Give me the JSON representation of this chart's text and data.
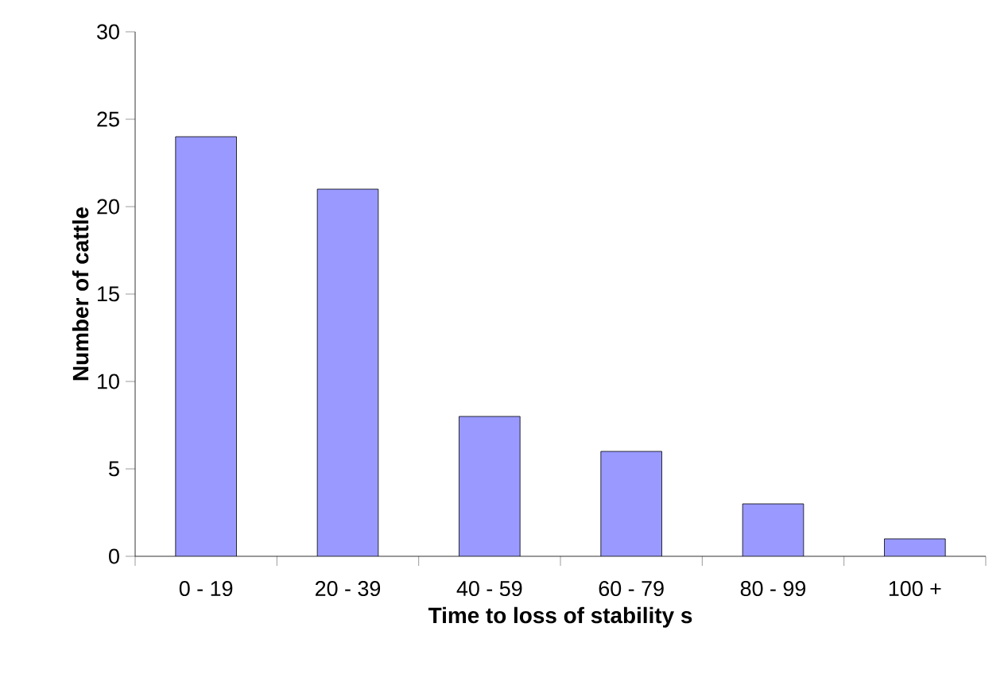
{
  "chart_data": {
    "type": "bar",
    "xlabel": "Time to loss of stability  s",
    "ylabel": "Number of cattle",
    "categories": [
      "0 - 19",
      "20 - 39",
      "40 - 59",
      "60 - 79",
      "80 - 99",
      "100 +"
    ],
    "values": [
      24,
      21,
      8,
      6,
      3,
      1
    ],
    "color": "#9999ff",
    "ylim": [
      0,
      30
    ],
    "yticks": [
      0,
      5,
      10,
      15,
      20,
      25,
      30
    ]
  }
}
